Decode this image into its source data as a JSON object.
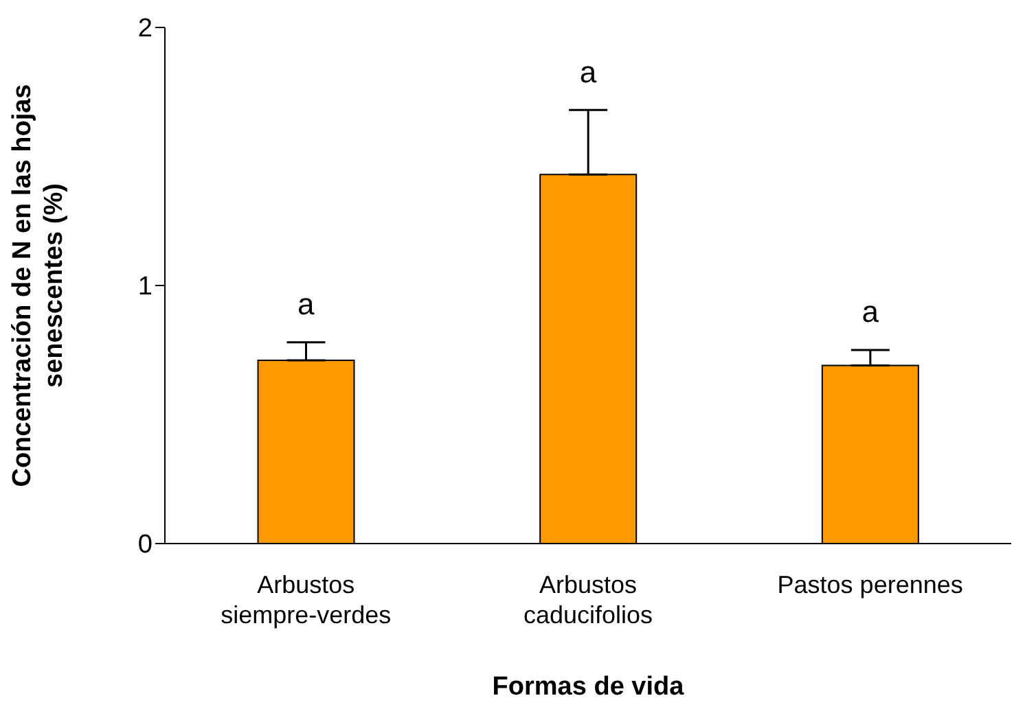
{
  "chart_data": {
    "type": "bar",
    "xlabel": "Formas de vida",
    "ylabel": "Concentración de N en las hojas senescentes (%)",
    "categories": [
      "Arbustos siempre-verdes",
      "Arbustos caducifolios",
      "Pastos perennes"
    ],
    "values": [
      0.71,
      1.43,
      0.69
    ],
    "color": "#ff9900",
    "errors": [
      [
        0.71,
        0.78
      ],
      [
        1.43,
        1.68
      ],
      [
        0.69,
        0.75
      ]
    ],
    "ylim": [
      0,
      2
    ],
    "yticks": [
      0,
      1,
      2
    ],
    "grid": false,
    "legend": false,
    "annotations": [
      "a",
      "a",
      "a"
    ]
  }
}
